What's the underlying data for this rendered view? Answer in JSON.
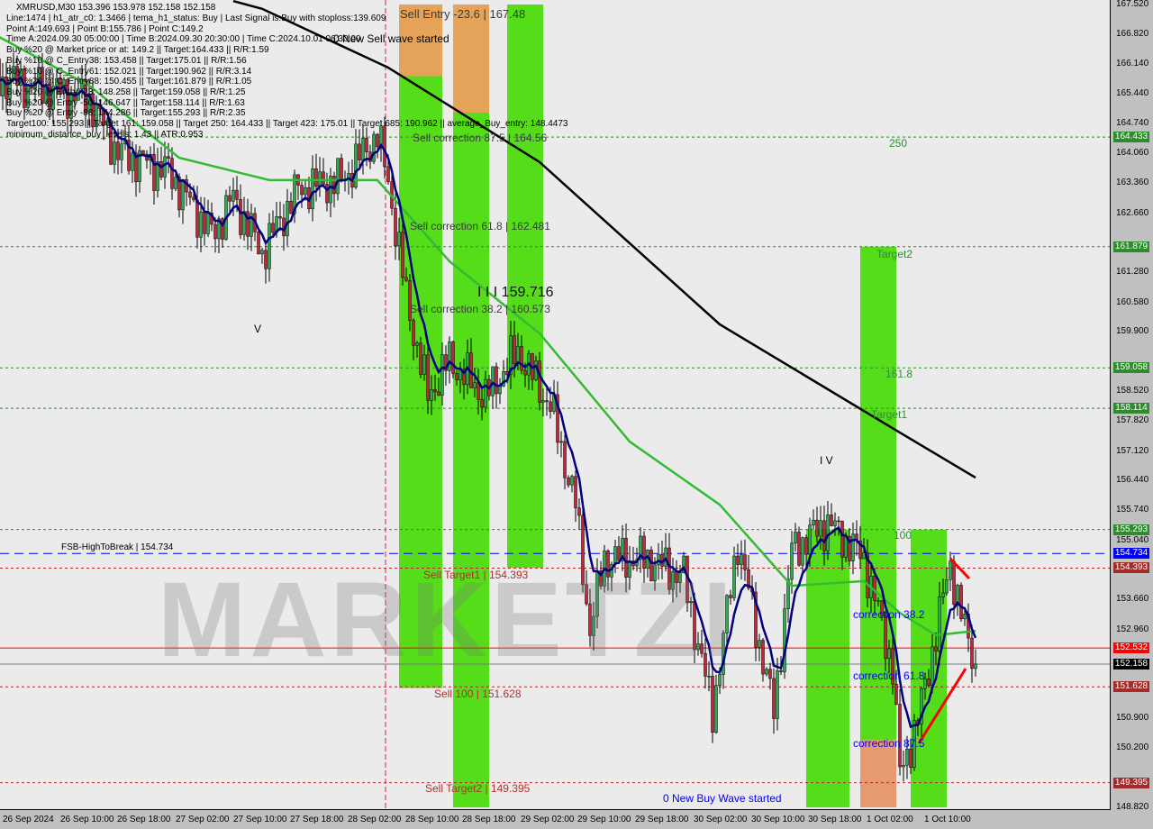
{
  "header": {
    "symbol_line": "XMRUSD,M30  153.396 153.978 152.158 152.158",
    "info_lines": [
      "Line:1474 | h1_atr_c0: 1.3466 | tema_h1_status: Buy | Last Signal is:Buy with stoploss:139.609",
      "Point A:149.693 | Point B:155.786 | Point C:149.2",
      "Time A:2024.09.30 05:00:00 | Time B:2024.09.30 20:30:00 | Time C:2024.10.01 06:30:00",
      "Buy %20 @ Market price or at: 149.2 || Target:164.433 || R/R:1.59",
      "Buy %10 @ C_Entry38: 153.458 || Target:175.01 || R/R:1.56",
      "Buy %10 @ C_Entry61: 152.021 || Target:190.962 || R/R:3.14",
      "Buy %20 @ C_Entry88: 150.455 || Target:161.879 || R/R:1.05",
      "Buy %20 @ Entry -23: 148.258 || Target:159.058 || R/R:1.25",
      "Buy %20 @ Entry -50: 146.647 || Target:158.114 || R/R:1.63",
      "Buy %20 @ Entry -88: 144.286 || Target:155.293 || R/R:2.35",
      "Target100: 155.293 || Target 161: 159.058 || Target 250: 164.433 || Target 423: 175.01 || Target 685: 190.962 || average_Buy_entry: 148.4473",
      "minimum_distance_buy_levels: 1.43 || ATR:0.953"
    ]
  },
  "watermark": "MARKETZI",
  "annotations": {
    "sell_entry": "Sell Entry -23.6 | 167.48",
    "new_sell_wave": "0 New Sell wave started",
    "sell_corr_875": "Sell correction 87.5 | 164.56",
    "lvl_250": "250",
    "sell_corr_618": "Sell correction 61.8 | 162.481",
    "target2": "Target2",
    "wave_iii": "I I I 159.716",
    "sell_corr_382": "Sell correction 38.2 | 160.573",
    "wave_v": "V",
    "lvl_1618": "161.8",
    "target1": "Target1",
    "wave_iv": "I V",
    "lvl_100": "100",
    "fsb": "FSB-HighToBreak | 154.734",
    "sell_target1": "Sell Target1 | 154.393",
    "corr_382": "correction 38.2",
    "corr_618": "correction 61.8",
    "sell_100": "Sell 100 | 151.628",
    "corr_875": "correction 87.5",
    "sell_target2": "Sell Target2 | 149.395",
    "new_buy_wave": "0 New Buy Wave started"
  },
  "chart_data": {
    "type": "candlestick",
    "symbol": "XMRUSD",
    "timeframe": "M30",
    "ylim": [
      148.82,
      167.52
    ],
    "y_ticks": [
      "167.520",
      "166.820",
      "166.140",
      "165.440",
      "164.740",
      "164.060",
      "163.360",
      "162.660",
      "161.280",
      "160.580",
      "159.900",
      "158.520",
      "157.820",
      "157.120",
      "156.440",
      "155.740",
      "155.040",
      "153.660",
      "152.960",
      "150.900",
      "150.200",
      "148.820"
    ],
    "x_ticks": [
      "26 Sep 2024",
      "26 Sep 10:00",
      "26 Sep 18:00",
      "27 Sep 02:00",
      "27 Sep 10:00",
      "27 Sep 18:00",
      "28 Sep 02:00",
      "28 Sep 10:00",
      "28 Sep 18:00",
      "29 Sep 02:00",
      "29 Sep 10:00",
      "29 Sep 18:00",
      "30 Sep 02:00",
      "30 Sep 10:00",
      "30 Sep 18:00",
      "1 Oct 02:00",
      "1 Oct 10:00"
    ],
    "price_path": [
      [
        "26 Sep 03:00",
        165.74
      ],
      [
        "26 Sep 14:00",
        165.32
      ],
      [
        "26 Sep 18:00",
        164.06
      ],
      [
        "27 Sep 01:00",
        163.64
      ],
      [
        "27 Sep 07:00",
        162.17
      ],
      [
        "27 Sep 10:00",
        163.01
      ],
      [
        "27 Sep 14:00",
        161.75
      ],
      [
        "27 Sep 19:00",
        163.22
      ],
      [
        "28 Sep 01:00",
        163.43
      ],
      [
        "28 Sep 06:00",
        164.48
      ],
      [
        "28 Sep 07:30",
        163.43
      ],
      [
        "28 Sep 10:00",
        160.7
      ],
      [
        "28 Sep 13:00",
        158.39
      ],
      [
        "28 Sep 16:00",
        159.23
      ],
      [
        "28 Sep 21:00",
        158.39
      ],
      [
        "29 Sep 01:30",
        159.44
      ],
      [
        "29 Sep 06:00",
        158.18
      ],
      [
        "29 Sep 09:30",
        155.87
      ],
      [
        "29 Sep 11:30",
        152.93
      ],
      [
        "29 Sep 13:30",
        154.61
      ],
      [
        "29 Sep 19:30",
        154.61
      ],
      [
        "30 Sep 00:30",
        154.19
      ],
      [
        "30 Sep 04:30",
        151.05
      ],
      [
        "30 Sep 08:00",
        155.03
      ],
      [
        "30 Sep 13:00",
        151.05
      ],
      [
        "30 Sep 15:30",
        154.82
      ],
      [
        "30 Sep 20:30",
        155.45
      ],
      [
        "1 Oct 01:30",
        154.61
      ],
      [
        "1 Oct 05:30",
        152.1
      ],
      [
        "1 Oct 06:30",
        149.58
      ],
      [
        "1 Oct 09:00",
        150.84
      ],
      [
        "1 Oct 13:30",
        154.51
      ],
      [
        "1 Oct 15:30",
        152.93
      ],
      [
        "1 Oct 17:00",
        152.158
      ]
    ],
    "ma_slow": [
      [
        "27 Sep 10:00",
        167.6
      ],
      [
        "27 Sep 14:00",
        167.42
      ],
      [
        "28 Sep 07:30",
        166.05
      ],
      [
        "29 Sep 04:30",
        163.85
      ],
      [
        "29 Sep 17:00",
        161.96
      ],
      [
        "30 Sep 05:30",
        160.07
      ],
      [
        "30 Sep 18:00",
        158.81
      ],
      [
        "1 Oct 06:30",
        157.55
      ],
      [
        "1 Oct 17:00",
        156.5
      ]
    ],
    "ma_mid": [
      [
        "26 Sep 00:00",
        166.9
      ],
      [
        "26 Sep 14:00",
        165.63
      ],
      [
        "27 Sep 02:30",
        163.95
      ],
      [
        "27 Sep 15:00",
        163.43
      ],
      [
        "28 Sep 06:00",
        163.43
      ],
      [
        "28 Sep 16:00",
        161.54
      ],
      [
        "29 Sep 04:30",
        159.86
      ],
      [
        "29 Sep 17:00",
        157.34
      ],
      [
        "30 Sep 05:30",
        155.87
      ],
      [
        "30 Sep 15:30",
        153.98
      ],
      [
        "1 Oct 01:30",
        154.09
      ],
      [
        "1 Oct 06:30",
        153.35
      ],
      [
        "1 Oct 11:30",
        152.83
      ],
      [
        "1 Oct 17:00",
        152.93
      ]
    ],
    "levels": [
      {
        "price": 164.433,
        "label": "164.433",
        "color": "#2e8b2e",
        "style": "dotted"
      },
      {
        "price": 161.879,
        "label": "161.879",
        "color": "#2e8b2e",
        "style": "dotted"
      },
      {
        "price": 159.058,
        "label": "159.058",
        "color": "#2e8b2e",
        "style": "dotted"
      },
      {
        "price": 158.114,
        "label": "158.114",
        "color": "#2e8b2e",
        "style": "dotted"
      },
      {
        "price": 155.293,
        "label": "155.293",
        "color": "#2e8b2e",
        "style": "dotted"
      },
      {
        "price": 154.734,
        "label": "154.734",
        "color": "#0000ff",
        "style": "dashed"
      },
      {
        "price": 154.393,
        "label": "154.393",
        "color": "#a52a2a",
        "style": "dotted"
      },
      {
        "price": 152.532,
        "label": "152.532",
        "color": "#ff0000",
        "style": "solid"
      },
      {
        "price": 152.158,
        "label": "152.158",
        "color": "#000000",
        "style": "solid"
      },
      {
        "price": 151.628,
        "label": "151.628",
        "color": "#a52a2a",
        "style": "dotted"
      },
      {
        "price": 149.395,
        "label": "149.395",
        "color": "#a52a2a",
        "style": "dotted"
      }
    ],
    "zones": [
      {
        "from": "28 Sep 09:00",
        "to": "28 Sep 15:00",
        "top": 167.52,
        "bottom": 151.6,
        "color": "#55dd1a"
      },
      {
        "from": "28 Sep 09:00",
        "to": "28 Sep 15:00",
        "top": 167.52,
        "bottom": 165.85,
        "color": "#e5a35a"
      },
      {
        "from": "28 Sep 16:30",
        "to": "28 Sep 21:30",
        "top": 167.52,
        "bottom": 148.82,
        "color": "#55dd1a"
      },
      {
        "from": "28 Sep 16:30",
        "to": "28 Sep 21:30",
        "top": 167.52,
        "bottom": 165.0,
        "color": "#e5a35a"
      },
      {
        "from": "29 Sep 00:00",
        "to": "29 Sep 05:00",
        "top": 167.52,
        "bottom": 154.4,
        "color": "#55dd1a"
      },
      {
        "from": "30 Sep 17:30",
        "to": "30 Sep 23:30",
        "top": 155.29,
        "bottom": 148.82,
        "color": "#55dd1a"
      },
      {
        "from": "1 Oct 01:00",
        "to": "1 Oct 06:00",
        "top": 161.88,
        "bottom": 148.82,
        "color": "#55dd1a"
      },
      {
        "from": "1 Oct 01:00",
        "to": "1 Oct 06:00",
        "top": 150.4,
        "bottom": 148.82,
        "color": "#e59a70"
      },
      {
        "from": "1 Oct 08:00",
        "to": "1 Oct 13:00",
        "top": 155.29,
        "bottom": 148.82,
        "color": "#55dd1a"
      }
    ],
    "colors": {
      "bull": "#2faa4f",
      "bear": "#c0253a",
      "ma_fast": "#000080",
      "ma_mid": "#33bb33",
      "ma_slow": "#000000"
    }
  }
}
